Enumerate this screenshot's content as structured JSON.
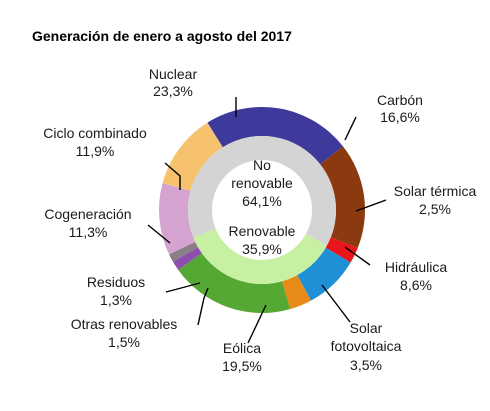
{
  "chart_data": {
    "type": "pie",
    "title": "Generación de enero a agosto del 2017",
    "outer_ring": [
      {
        "name": "Nuclear",
        "value": 23.3,
        "label": "23,3%",
        "color": "#3d3a9b"
      },
      {
        "name": "Carbón",
        "value": 16.6,
        "label": "16,6%",
        "color": "#8b3a0f"
      },
      {
        "name": "Solar térmica",
        "value": 2.5,
        "label": "2,5%",
        "color": "#e8151b"
      },
      {
        "name": "Hidráulica",
        "value": 8.6,
        "label": "8,6%",
        "color": "#1f8fd6"
      },
      {
        "name": "Solar fotovoltaica",
        "value": 3.5,
        "label": "3,5%",
        "color": "#e88a18"
      },
      {
        "name": "Eólica",
        "value": 19.5,
        "label": "19,5%",
        "color": "#55a833"
      },
      {
        "name": "Otras renovables",
        "value": 1.5,
        "label": "1,5%",
        "color": "#8e4eb0"
      },
      {
        "name": "Residuos",
        "value": 1.3,
        "label": "1,3%",
        "color": "#8a7e86"
      },
      {
        "name": "Cogeneración",
        "value": 11.3,
        "label": "11,3%",
        "color": "#d5a3cf"
      },
      {
        "name": "Ciclo combinado",
        "value": 11.9,
        "label": "11,9%",
        "color": "#f6c26e"
      }
    ],
    "inner_ring": [
      {
        "name": "No renovable",
        "value": 64.1,
        "label": "64,1%",
        "color": "#d4d4d4"
      },
      {
        "name": "Renovable",
        "value": 35.9,
        "label": "35,9%",
        "color": "#c8f0a2"
      }
    ]
  }
}
